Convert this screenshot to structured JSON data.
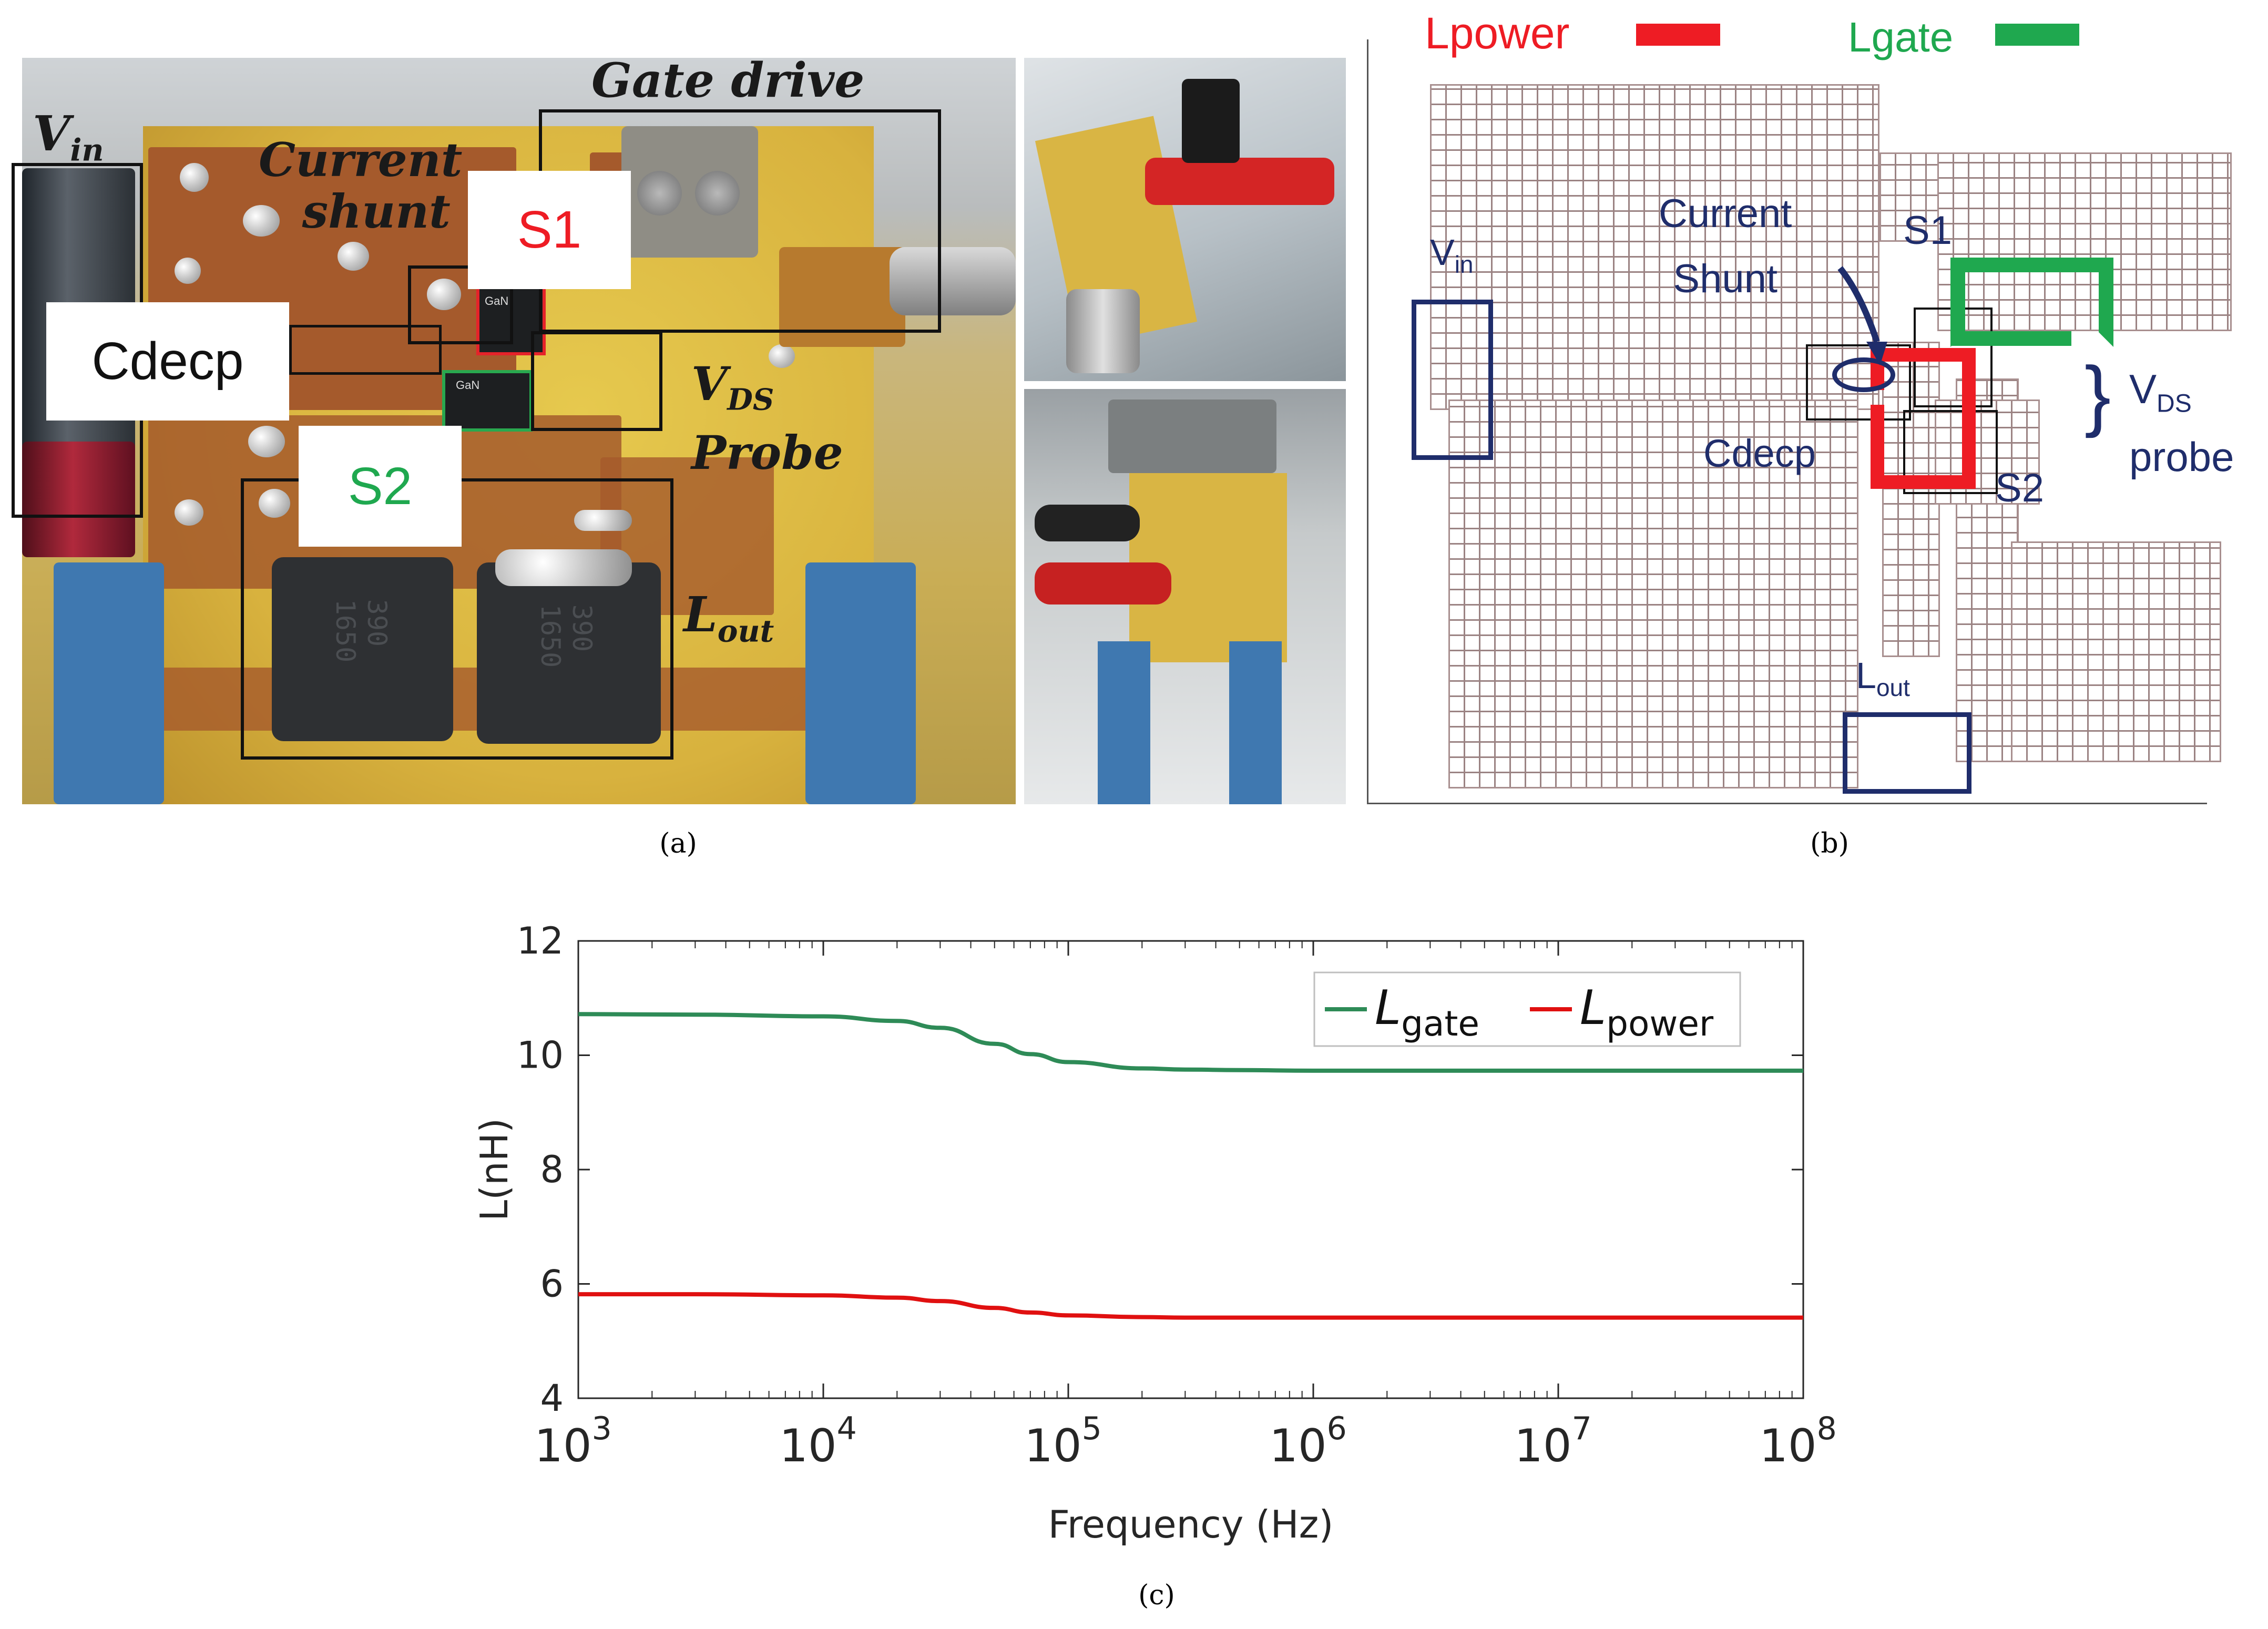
{
  "panel_a": {
    "caption": "(a)",
    "labels": {
      "vin_base": "V",
      "vin_sub": "in",
      "current_shunt_line1": "Current",
      "current_shunt_line2": "shunt",
      "gate_drive": "Gate drive",
      "s1": "S1",
      "s2": "S2",
      "cdecp": "Cdecp",
      "vds_base": "V",
      "vds_sub": "DS",
      "probe": "Probe",
      "lout_base": "L",
      "lout_sub": "out"
    },
    "component_markings": {
      "chip1": "GaN",
      "chip2": "GaN",
      "inductor1_line1": "390",
      "inductor1_line2": "1650",
      "inductor2_line1": "390",
      "inductor2_line2": "1650"
    },
    "label_colors": {
      "s1": "#ee1c24",
      "s2": "#1fa84f"
    }
  },
  "panel_b": {
    "caption": "(b)",
    "legend": {
      "lpower": "Lpower",
      "lgate": "Lgate",
      "lpower_color": "#ee1c24",
      "lgate_color": "#1fa84f"
    },
    "labels": {
      "vin_base": "V",
      "vin_sub": "in",
      "current_shunt_line1": "Current",
      "current_shunt_line2": "Shunt",
      "s1": "S1",
      "s2": "S2",
      "cdecp": "Cdecp",
      "vds_base": "V",
      "vds_sub": "DS",
      "vds_line2": "probe",
      "brace": "}",
      "lout_base": "L",
      "lout_sub": "out"
    },
    "label_color": "#1f2d6b"
  },
  "panel_c": {
    "caption": "(c)"
  },
  "chart_data": {
    "type": "line",
    "xscale": "log",
    "xlabel": "Frequency (Hz)",
    "ylabel": "L(nH)",
    "xlim": [
      1000,
      100000000
    ],
    "ylim": [
      4,
      12
    ],
    "xticks": [
      {
        "base": "10",
        "exp": "3"
      },
      {
        "base": "10",
        "exp": "4"
      },
      {
        "base": "10",
        "exp": "5"
      },
      {
        "base": "10",
        "exp": "6"
      },
      {
        "base": "10",
        "exp": "7"
      },
      {
        "base": "10",
        "exp": "8"
      }
    ],
    "yticks": [
      "4",
      "6",
      "8",
      "10",
      "12"
    ],
    "grid": false,
    "legend_position": "top-right",
    "series": [
      {
        "name_base": "L",
        "name_sub": "gate",
        "color": "#2e8b57",
        "x": [
          1000,
          3000,
          10000,
          20000,
          30000,
          50000,
          70000,
          100000,
          200000,
          300000,
          500000,
          1000000,
          10000000,
          100000000
        ],
        "y": [
          10.72,
          10.71,
          10.68,
          10.6,
          10.48,
          10.2,
          10.02,
          9.88,
          9.77,
          9.75,
          9.74,
          9.73,
          9.73,
          9.73
        ]
      },
      {
        "name_base": "L",
        "name_sub": "power",
        "color": "#e01010",
        "x": [
          1000,
          3000,
          10000,
          20000,
          30000,
          50000,
          70000,
          100000,
          200000,
          300000,
          500000,
          1000000,
          10000000,
          100000000
        ],
        "y": [
          5.82,
          5.82,
          5.8,
          5.76,
          5.7,
          5.58,
          5.5,
          5.45,
          5.42,
          5.41,
          5.41,
          5.41,
          5.41,
          5.41
        ]
      }
    ]
  }
}
